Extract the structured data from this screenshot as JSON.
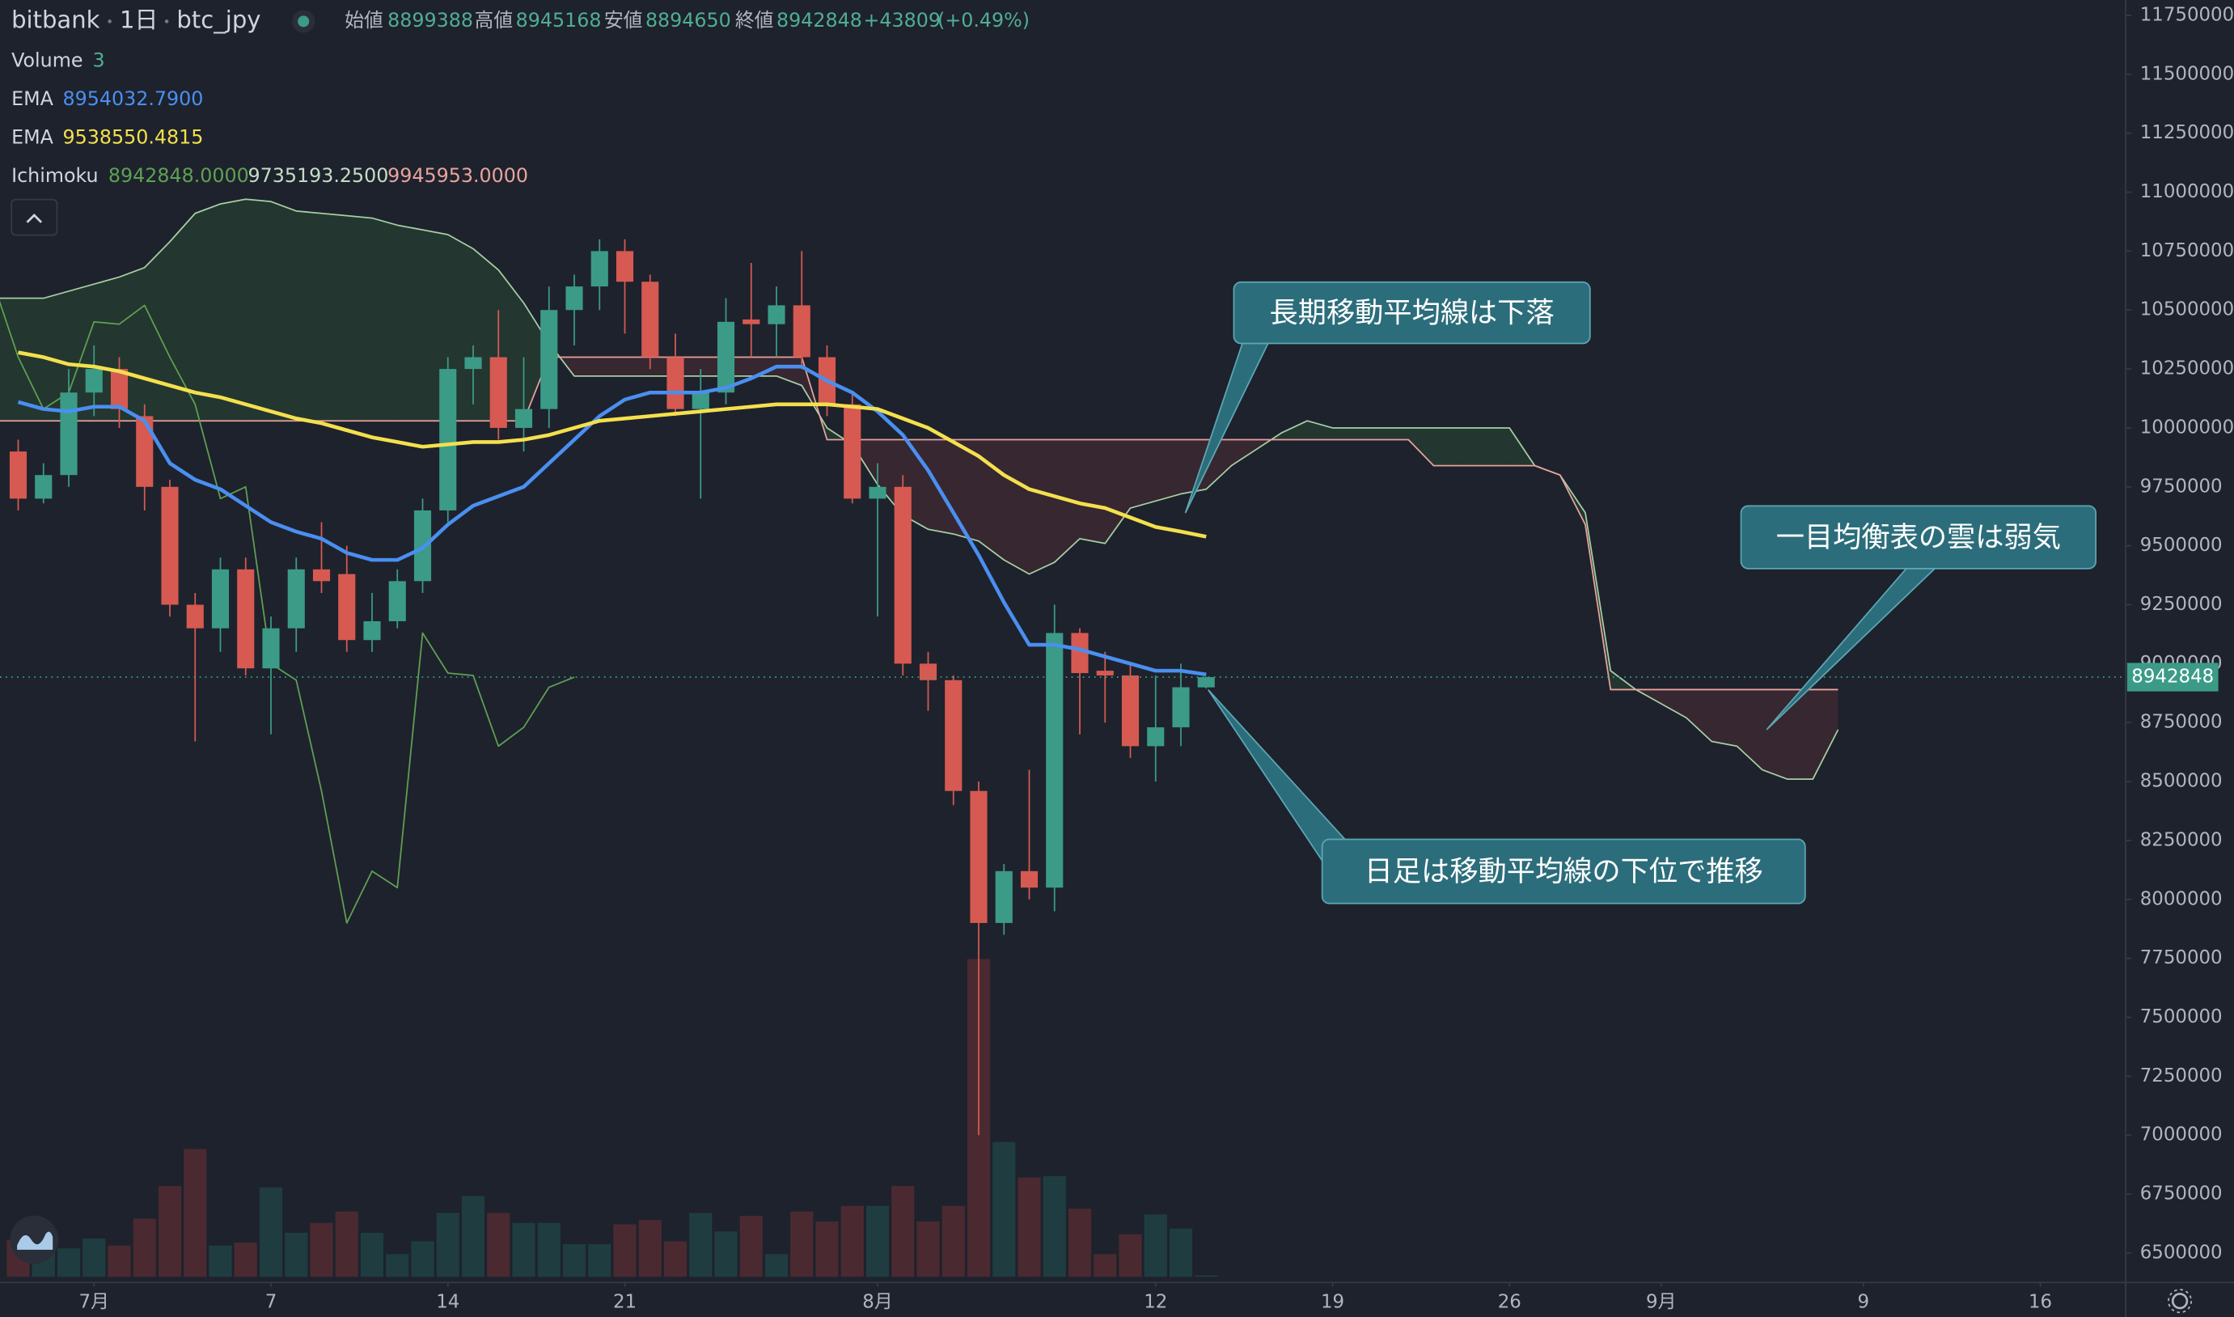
{
  "header": {
    "exchange": "bitbank",
    "interval": "1日",
    "symbol": "btc_jpy",
    "open_label": "始値",
    "high_label": "高値",
    "low_label": "安値",
    "close_label": "終値",
    "change": "+43809",
    "change_pct": "(+0.49%)"
  },
  "chart_data": {
    "type": "candlestick",
    "x": [
      -3,
      -2,
      -1,
      0,
      1,
      2,
      3,
      4,
      5,
      6,
      7,
      8,
      9,
      10,
      11,
      12,
      13,
      14,
      15,
      16,
      17,
      18,
      19,
      20,
      21,
      22,
      23,
      24,
      25,
      26,
      27,
      28,
      29,
      30,
      31,
      32,
      33,
      34,
      35,
      36,
      37,
      38,
      39,
      40,
      41,
      42,
      43,
      44
    ],
    "open": [
      9900000,
      9700000,
      9800000,
      10150000,
      10250000,
      10050000,
      9750000,
      9250000,
      9150000,
      9400000,
      8980000,
      9150000,
      9400000,
      9380000,
      9100000,
      9180000,
      9350000,
      9650000,
      10250000,
      10300000,
      10000000,
      10080000,
      10500000,
      10600000,
      10750000,
      10620000,
      10300000,
      10080000,
      10150000,
      10460000,
      10440000,
      10520000,
      10300000,
      10100000,
      9700000,
      9750000,
      9000000,
      8930000,
      8460000,
      7900000,
      8120000,
      8050000,
      9130000,
      8970000,
      8950000,
      8650000,
      8730000,
      8899388
    ],
    "high": [
      9950000,
      9850000,
      10250000,
      10350000,
      10300000,
      10100000,
      9780000,
      9300000,
      9450000,
      9450000,
      9200000,
      9450000,
      9600000,
      9500000,
      9300000,
      9400000,
      9700000,
      10300000,
      10350000,
      10500000,
      10300000,
      10600000,
      10650000,
      10800000,
      10800000,
      10650000,
      10400000,
      10250000,
      10550000,
      10700000,
      10600000,
      10750000,
      10350000,
      10150000,
      9850000,
      9800000,
      9050000,
      8950000,
      8500000,
      8150000,
      8550000,
      9250000,
      9150000,
      9050000,
      9000000,
      8950000,
      9000000,
      8945168
    ],
    "low": [
      9650000,
      9680000,
      9750000,
      10050000,
      10000000,
      9650000,
      9200000,
      8670000,
      9050000,
      8950000,
      8700000,
      9050000,
      9300000,
      9050000,
      9050000,
      9150000,
      9300000,
      9600000,
      10100000,
      9950000,
      9900000,
      10000000,
      10350000,
      10500000,
      10400000,
      10250000,
      10050000,
      9700000,
      10100000,
      10300000,
      10300000,
      10250000,
      10050000,
      9680000,
      9200000,
      8950000,
      8800000,
      8400000,
      7000000,
      7850000,
      8000000,
      7950000,
      8700000,
      8750000,
      8600000,
      8500000,
      8650000,
      8894650
    ],
    "close": [
      9700000,
      9800000,
      10150000,
      10250000,
      10080000,
      9750000,
      9250000,
      9150000,
      9400000,
      8980000,
      9150000,
      9400000,
      9350000,
      9100000,
      9180000,
      9350000,
      9650000,
      10250000,
      10300000,
      10000000,
      10080000,
      10500000,
      10600000,
      10750000,
      10620000,
      10300000,
      10080000,
      10150000,
      10450000,
      10440000,
      10520000,
      10300000,
      10100000,
      9700000,
      9750000,
      9000000,
      8930000,
      8460000,
      7900000,
      8120000,
      8050000,
      9130000,
      8960000,
      8950000,
      8650000,
      8730000,
      8900000,
      8942848
    ],
    "up_color": "#3b9b87",
    "down_color": "#d65a51",
    "volume": {
      "name": "Volume",
      "up_color": "#1f3d41",
      "down_color": "#4a2a30",
      "values": [
        78,
        54,
        60,
        81,
        66,
        123,
        192,
        270,
        66,
        72,
        189,
        93,
        114,
        138,
        93,
        48,
        75,
        135,
        171,
        135,
        114,
        114,
        69,
        69,
        111,
        120,
        75,
        135,
        96,
        129,
        48,
        138,
        117,
        150,
        150,
        192,
        117,
        150,
        672,
        285,
        210,
        213,
        144,
        48,
        90,
        132,
        102,
        3
      ]
    },
    "series": [
      {
        "name": "EMA",
        "color": "#4a8ff0",
        "value_label": "8954032.7900",
        "values": [
          10110000,
          10080000,
          10070000,
          10090000,
          10090000,
          10030000,
          9850000,
          9780000,
          9740000,
          9670000,
          9600000,
          9560000,
          9530000,
          9470000,
          9440000,
          9440000,
          9490000,
          9590000,
          9670000,
          9710000,
          9750000,
          9850000,
          9950000,
          10050000,
          10120000,
          10150000,
          10150000,
          10150000,
          10170000,
          10210000,
          10260000,
          10260000,
          10200000,
          10150000,
          10070000,
          9970000,
          9820000,
          9640000,
          9460000,
          9260000,
          9080000,
          9080000,
          9060000,
          9030000,
          9000000,
          8970000,
          8970000,
          8954032.79
        ]
      },
      {
        "name": "EMA",
        "color": "#f4e04d",
        "value_label": "9538550.4815",
        "values": [
          10320000,
          10300000,
          10270000,
          10260000,
          10240000,
          10210000,
          10180000,
          10150000,
          10130000,
          10100000,
          10070000,
          10040000,
          10020000,
          9990000,
          9960000,
          9940000,
          9920000,
          9930000,
          9940000,
          9940000,
          9950000,
          9970000,
          10000000,
          10030000,
          10040000,
          10050000,
          10060000,
          10070000,
          10080000,
          10090000,
          10100000,
          10100000,
          10100000,
          10090000,
          10080000,
          10040000,
          10000000,
          9940000,
          9880000,
          9800000,
          9740000,
          9710000,
          9680000,
          9660000,
          9620000,
          9580000,
          9560000,
          9538550.4815
        ]
      }
    ],
    "ichimoku": {
      "name": "Ichimoku",
      "value_labels": [
        "8942848.0000",
        "9735193.2500",
        "9945953.0000"
      ],
      "label_colors": [
        "#5ea152",
        "#c5dcc4",
        "#e8a39d"
      ],
      "up_fill": "rgba(67,160,71,0.16)",
      "down_fill": "rgba(239,83,80,0.12)",
      "lagging": {
        "color": "#5ea152",
        "x": [
          -4,
          -3,
          -2,
          -1,
          0,
          1,
          2,
          3,
          4,
          5,
          6,
          7,
          8,
          9,
          10,
          11,
          12,
          13,
          14,
          15,
          16,
          17,
          18,
          19
        ],
        "values": [
          10620000,
          10300000,
          10080000,
          10150000,
          10450000,
          10440000,
          10520000,
          10300000,
          10100000,
          9700000,
          9750000,
          9000000,
          8930000,
          8460000,
          7900000,
          8120000,
          8050000,
          9130000,
          8960000,
          8950000,
          8650000,
          8730000,
          8900000,
          8942848
        ]
      },
      "span_x": [
        -4,
        -3,
        -2,
        -1,
        0,
        1,
        2,
        3,
        4,
        5,
        6,
        7,
        8,
        9,
        10,
        11,
        12,
        13,
        14,
        15,
        16,
        17,
        18,
        19,
        20,
        21,
        22,
        23,
        24,
        25,
        26,
        27,
        28,
        29,
        30,
        31,
        32,
        33,
        34,
        35,
        36,
        37,
        38,
        39,
        40,
        41,
        42,
        43,
        44,
        45,
        46,
        47,
        48,
        49,
        50,
        51,
        52,
        53,
        54,
        55,
        56,
        57,
        58,
        59,
        60,
        61,
        62,
        63,
        64,
        65,
        66,
        67,
        68,
        69
      ],
      "span_a": {
        "color": "#a5cfa3",
        "values": [
          10550000,
          10550000,
          10550000,
          10580000,
          10610000,
          10640000,
          10680000,
          10790000,
          10910000,
          10950000,
          10970000,
          10960000,
          10920000,
          10910000,
          10900000,
          10890000,
          10860000,
          10840000,
          10820000,
          10760000,
          10670000,
          10530000,
          10360000,
          10220000,
          10220000,
          10220000,
          10220000,
          10220000,
          10220000,
          10220000,
          10220000,
          10220000,
          10180000,
          10000000,
          9930000,
          9760000,
          9630000,
          9570000,
          9550000,
          9520000,
          9440000,
          9380000,
          9430000,
          9530000,
          9510000,
          9660000,
          9690000,
          9720000,
          9740000,
          9840000,
          9910000,
          9980000,
          10030000,
          10000000,
          10000000,
          10000000,
          10000000,
          10000000,
          10000000,
          10000000,
          10000000,
          9840000,
          9800000,
          9640000,
          8970000,
          8890000,
          8830000,
          8770000,
          8670000,
          8650000,
          8550000,
          8510000,
          8510000,
          8720000
        ]
      },
      "span_b": {
        "color": "#e8a39d",
        "values": [
          10030000,
          10030000,
          10030000,
          10030000,
          10030000,
          10030000,
          10030000,
          10030000,
          10030000,
          10030000,
          10030000,
          10030000,
          10030000,
          10030000,
          10030000,
          10030000,
          10030000,
          10030000,
          10030000,
          10030000,
          10030000,
          10030000,
          10300000,
          10300000,
          10300000,
          10300000,
          10300000,
          10300000,
          10300000,
          10300000,
          10300000,
          10300000,
          10300000,
          9950000,
          9950000,
          9950000,
          9950000,
          9950000,
          9950000,
          9950000,
          9950000,
          9950000,
          9950000,
          9950000,
          9950000,
          9950000,
          9950000,
          9950000,
          9950000,
          9950000,
          9950000,
          9950000,
          9950000,
          9950000,
          9950000,
          9950000,
          9950000,
          9840000,
          9840000,
          9840000,
          9840000,
          9840000,
          9800000,
          9590000,
          8890000,
          8890000,
          8890000,
          8890000,
          8890000,
          8890000,
          8890000,
          8890000,
          8890000,
          8890000
        ]
      }
    },
    "xlim": [
      -3.72,
      80.38
    ],
    "xticks": [
      {
        "value": 0,
        "label": "7月"
      },
      7,
      14,
      21,
      {
        "value": 31,
        "label": "8月"
      },
      {
        "value": 42,
        "label": "12"
      },
      {
        "value": 49,
        "label": "19"
      },
      {
        "value": 56,
        "label": "26"
      },
      {
        "value": 62,
        "label": "9月"
      },
      {
        "value": 70,
        "label": "9"
      },
      {
        "value": 77,
        "label": "16"
      }
    ],
    "ylim": [
      6375000,
      11815000
    ],
    "yticks": [
      6500000,
      6750000,
      7000000,
      7250000,
      7500000,
      7750000,
      8000000,
      8250000,
      8500000,
      8750000,
      9000000,
      9250000,
      9500000,
      9750000,
      10000000,
      10250000,
      10500000,
      10750000,
      11000000,
      11250000,
      11500000,
      11750000
    ],
    "grid": false,
    "annotations": [
      {
        "text": "長期移動平均線は下落"
      },
      {
        "text": "一目均衡表の雲は弱気"
      },
      {
        "text": "日足は移動平均線の下位で推移"
      }
    ]
  }
}
